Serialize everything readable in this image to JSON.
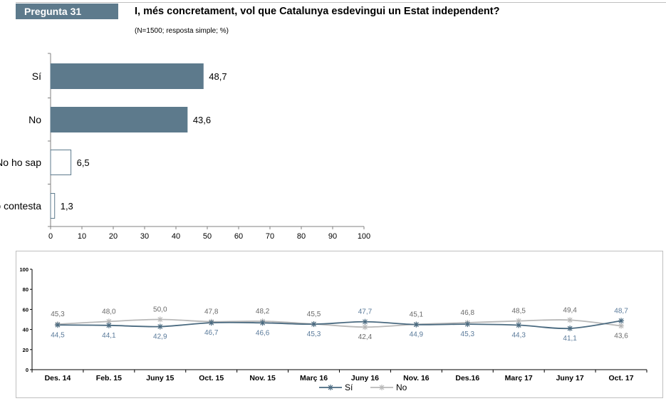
{
  "header": {
    "question_number": "Pregunta 31",
    "question": "I, més concretament, vol que Catalunya esdevingui un Estat independent?",
    "note": "(N=1500; resposta simple; %)"
  },
  "colors": {
    "tag_bg": "#5d7a8c",
    "bar_fill": "#5d7a8c",
    "series_si": "#4a6a80",
    "series_no": "#b8b8b8",
    "si_label": "#5a7a9a",
    "no_label": "#6a6a6a"
  },
  "chart_data": [
    {
      "type": "bar",
      "orientation": "horizontal",
      "categories": [
        "Sí",
        "No",
        "No ho sap",
        "No contesta"
      ],
      "values": [
        48.7,
        43.6,
        6.5,
        1.3
      ],
      "value_labels": [
        "48,7",
        "43,6",
        "6,5",
        "1,3"
      ],
      "filled": [
        true,
        true,
        false,
        false
      ],
      "xlim": [
        0,
        100
      ],
      "xticks": [
        0,
        10,
        20,
        30,
        40,
        50,
        60,
        70,
        80,
        90,
        100
      ],
      "grid": false
    },
    {
      "type": "line",
      "categories": [
        "Des. 14",
        "Feb. 15",
        "Juny 15",
        "Oct. 15",
        "Nov. 15",
        "Març 16",
        "Juny 16",
        "Nov. 16",
        "Des.16",
        "Març 17",
        "Juny 17",
        "Oct. 17"
      ],
      "ylim": [
        0,
        100
      ],
      "yticks": [
        0,
        20,
        40,
        60,
        80,
        100
      ],
      "legend_position": "bottom",
      "series": [
        {
          "name": "Sí",
          "values": [
            44.5,
            44.1,
            42.9,
            46.7,
            46.6,
            45.3,
            47.7,
            44.9,
            45.3,
            44.3,
            41.1,
            48.7
          ],
          "labels": [
            "44,5",
            "44,1",
            "42,9",
            "46,7",
            "46,6",
            "45,3",
            "47,7",
            "44,9",
            "45,3",
            "44,3",
            "41,1",
            "48,7"
          ]
        },
        {
          "name": "No",
          "values": [
            45.3,
            48.0,
            50.0,
            47.8,
            48.2,
            45.5,
            42.4,
            45.1,
            46.8,
            48.5,
            49.4,
            43.6
          ],
          "labels": [
            "45,3",
            "48,0",
            "50,0",
            "47,8",
            "48,2",
            "45,5",
            "42,4",
            "45,1",
            "46,8",
            "48,5",
            "49,4",
            "43,6"
          ]
        }
      ]
    }
  ]
}
